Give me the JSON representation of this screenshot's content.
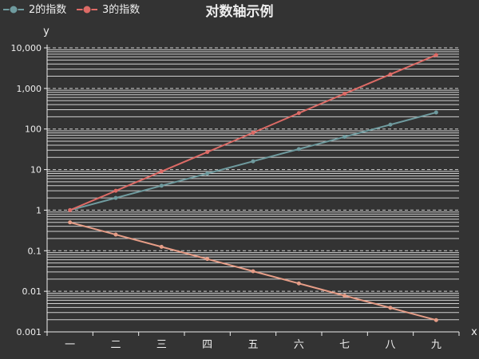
{
  "chart_data": {
    "type": "line",
    "title": "对数轴示例",
    "xlabel": "x",
    "ylabel": "y",
    "yscale": "log",
    "ylim": [
      0.001,
      10000
    ],
    "ytick_labels": [
      "0.001",
      "0.01",
      "0.1",
      "1",
      "10",
      "100",
      "1,000",
      "10,000"
    ],
    "categories": [
      "一",
      "二",
      "三",
      "四",
      "五",
      "六",
      "七",
      "八",
      "九"
    ],
    "legend_position": "top-left",
    "series": [
      {
        "name": "2的指数",
        "color": "#6f9b9f",
        "values": [
          1,
          2,
          4,
          8,
          16,
          32,
          64,
          128,
          256
        ],
        "in_legend": true
      },
      {
        "name": "3的指数",
        "color": "#dd6b66",
        "values": [
          1,
          3,
          9,
          27,
          81,
          247,
          741,
          2223,
          6669
        ],
        "in_legend": true
      },
      {
        "name": "",
        "color": "#e69d87",
        "values": [
          0.5,
          0.25,
          0.125,
          0.0625,
          0.03125,
          0.015625,
          0.0078125,
          0.00390625,
          0.001953125
        ],
        "in_legend": false
      }
    ]
  }
}
